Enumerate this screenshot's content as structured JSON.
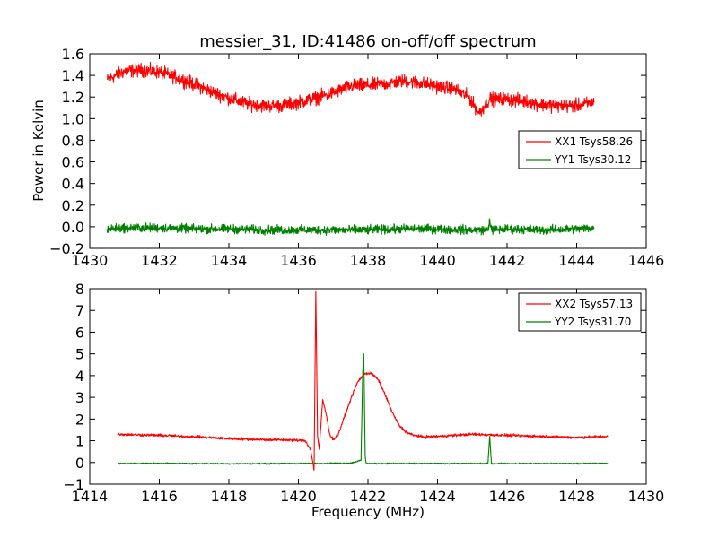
{
  "chart_data": [
    {
      "type": "line",
      "title": "messier_31, ID:41486 on-off/off spectrum",
      "xlabel": "",
      "ylabel": "Power in Kelvin",
      "xlim": [
        1430,
        1446
      ],
      "ylim": [
        -0.2,
        1.6
      ],
      "xticks": [
        1430,
        1432,
        1434,
        1436,
        1438,
        1440,
        1442,
        1444,
        1446
      ],
      "yticks": [
        -0.2,
        0.0,
        0.2,
        0.4,
        0.6,
        0.8,
        1.0,
        1.2,
        1.4,
        1.6
      ],
      "legend_position": "center-right",
      "series": [
        {
          "name": "XX1 Tsys58.26",
          "color": "#ff0000",
          "noise": 0.03,
          "x": [
            1430.5,
            1431.0,
            1431.5,
            1432.0,
            1432.5,
            1433.0,
            1433.5,
            1434.0,
            1434.5,
            1435.0,
            1435.5,
            1436.0,
            1436.5,
            1437.0,
            1437.5,
            1438.0,
            1438.5,
            1439.0,
            1439.5,
            1440.0,
            1440.5,
            1440.9,
            1441.2,
            1441.5,
            1442.0,
            1442.5,
            1443.0,
            1443.5,
            1444.0,
            1444.5
          ],
          "y": [
            1.36,
            1.44,
            1.45,
            1.43,
            1.38,
            1.32,
            1.25,
            1.19,
            1.14,
            1.12,
            1.12,
            1.15,
            1.19,
            1.24,
            1.3,
            1.31,
            1.32,
            1.35,
            1.33,
            1.3,
            1.27,
            1.2,
            1.05,
            1.18,
            1.18,
            1.16,
            1.13,
            1.12,
            1.12,
            1.15
          ]
        },
        {
          "name": "YY1 Tsys30.12",
          "color": "#008000",
          "noise": 0.02,
          "x": [
            1430.5,
            1431.0,
            1432.0,
            1433.0,
            1434.0,
            1435.0,
            1436.0,
            1437.0,
            1438.0,
            1439.0,
            1440.0,
            1441.0,
            1441.45,
            1441.5,
            1441.55,
            1442.0,
            1443.0,
            1444.0,
            1444.5
          ],
          "y": [
            -0.02,
            -0.01,
            -0.01,
            -0.02,
            -0.02,
            -0.03,
            -0.03,
            -0.03,
            -0.03,
            -0.02,
            -0.02,
            -0.03,
            -0.03,
            0.07,
            -0.03,
            -0.02,
            -0.03,
            -0.02,
            -0.01
          ]
        }
      ]
    },
    {
      "type": "line",
      "title": "",
      "xlabel": "Frequency (MHz)",
      "ylabel": "",
      "xlim": [
        1414,
        1430
      ],
      "ylim": [
        -1,
        8
      ],
      "xticks": [
        1414,
        1416,
        1418,
        1420,
        1422,
        1424,
        1426,
        1428,
        1430
      ],
      "yticks": [
        -1,
        0,
        1,
        2,
        3,
        4,
        5,
        6,
        7,
        8
      ],
      "legend_position": "top-right",
      "series": [
        {
          "name": "XX2 Tsys57.13",
          "color": "#ff0000",
          "noise": 0.03,
          "x": [
            1414.8,
            1416.0,
            1417.0,
            1418.0,
            1419.0,
            1419.8,
            1420.2,
            1420.35,
            1420.45,
            1420.5,
            1420.55,
            1420.6,
            1420.65,
            1420.7,
            1420.8,
            1420.9,
            1421.0,
            1421.15,
            1421.3,
            1421.5,
            1421.7,
            1421.9,
            1422.1,
            1422.3,
            1422.5,
            1422.7,
            1422.9,
            1423.1,
            1423.3,
            1423.6,
            1424.0,
            1425.0,
            1426.0,
            1427.0,
            1428.0,
            1428.9
          ],
          "y": [
            1.3,
            1.25,
            1.18,
            1.1,
            1.05,
            1.03,
            1.0,
            0.6,
            -0.35,
            7.9,
            1.2,
            0.6,
            1.8,
            2.9,
            2.2,
            1.3,
            1.05,
            1.3,
            2.0,
            2.9,
            3.7,
            4.1,
            4.1,
            3.8,
            3.1,
            2.3,
            1.7,
            1.4,
            1.25,
            1.18,
            1.2,
            1.3,
            1.25,
            1.2,
            1.15,
            1.2
          ]
        },
        {
          "name": "YY2 Tsys31.70",
          "color": "#008000",
          "noise": 0.015,
          "x": [
            1414.8,
            1416.0,
            1418.0,
            1420.0,
            1421.5,
            1421.8,
            1421.85,
            1421.88,
            1421.92,
            1421.95,
            1422.0,
            1424.0,
            1425.45,
            1425.5,
            1425.55,
            1426.0,
            1428.0,
            1428.9
          ],
          "y": [
            -0.05,
            -0.04,
            -0.06,
            -0.05,
            -0.03,
            0.1,
            4.2,
            5.0,
            0.3,
            -0.05,
            -0.05,
            -0.05,
            -0.05,
            1.2,
            -0.05,
            -0.05,
            -0.05,
            -0.04
          ]
        }
      ]
    }
  ]
}
